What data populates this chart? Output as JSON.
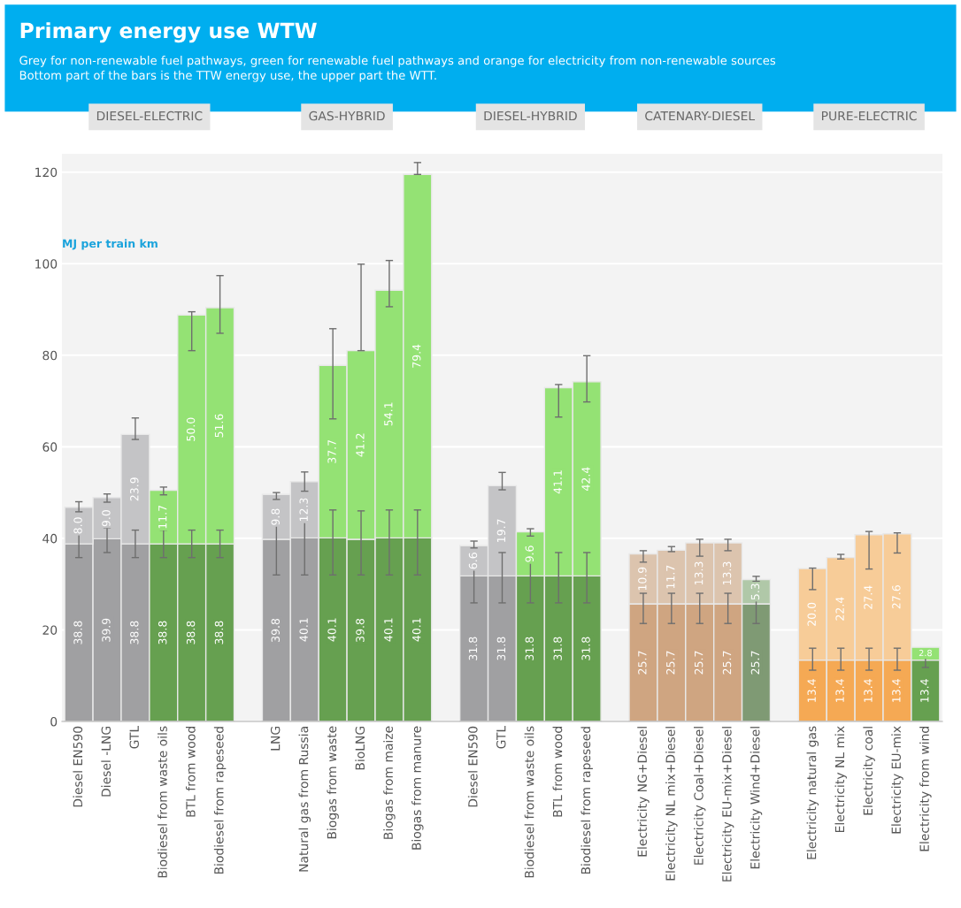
{
  "chart_data": {
    "type": "bar",
    "stacked": true,
    "title": "Primary energy use WTW",
    "subtitle": "Grey for non-renewable fuel pathways, green for renewable fuel pathways and orange for electricity from non-renewable sources\nBottom part of the bars is the TTW energy use, the upper part the WTT.",
    "ylabel": "MJ per train km",
    "annotations": [
      "DIESEL-ELECTRIC",
      "GAS-HYBRID",
      "DIESEL-HYBRID",
      "CATENARY-DIESEL",
      "PURE-ELECTRIC"
    ],
    "categories": [
      "Diesel EN590",
      "Diesel -LNG",
      "GTL",
      "Biodiesel from waste oils",
      "BTL from wood",
      "Biodiesel from rapeseed",
      null,
      "LNG",
      "Natural gas from Russia",
      "Biogas from waste",
      "BioLNG",
      "Biogas from maize",
      "Biogas from manure",
      null,
      "Diesel EN590",
      "GTL",
      "Biodiesel from waste oils",
      "BTL from wood",
      "Biodiesel from rapeseed",
      null,
      "Electricity NG+Diesel",
      "Electricity NL mix+Diesel",
      "Electricity Coal+Diesel",
      "Electricity EU-mix+Diesel",
      "Electricity Wind+Diesel",
      null,
      "Electricity natural gas",
      "Electricity NL mix",
      "Electricity coal",
      "Electricity EU-mix",
      "Electricity from wind"
    ],
    "series": [
      {
        "values": [
          38.8,
          39.9,
          38.8,
          38.8,
          38.8,
          38.8,
          null,
          39.8,
          40.1,
          40.1,
          39.8,
          40.1,
          40.1,
          null,
          31.8,
          31.8,
          31.8,
          31.8,
          31.8,
          null,
          25.7,
          25.7,
          25.7,
          25.7,
          25.7,
          null,
          13.4,
          13.4,
          13.4,
          13.4,
          13.4
        ],
        "colors": [
          "#a0a0a2",
          "#a0a0a2",
          "#a0a0a2",
          "#66a050",
          "#66a050",
          "#66a050",
          null,
          "#a0a0a2",
          "#a0a0a2",
          "#66a050",
          "#66a050",
          "#66a050",
          "#66a050",
          null,
          "#a0a0a2",
          "#a0a0a2",
          "#66a050",
          "#66a050",
          "#66a050",
          null,
          "#cfa581",
          "#cfa581",
          "#cfa581",
          "#cfa581",
          "#7f9a74",
          null,
          "#f5a954",
          "#f5a954",
          "#f5a954",
          "#f5a954",
          "#66a050"
        ],
        "errors": [
          [
            35.8,
            41.8
          ],
          [
            36.9,
            42.3
          ],
          [
            35.8,
            41.8
          ],
          [
            35.8,
            41.8
          ],
          [
            35.8,
            41.8
          ],
          [
            35.8,
            41.8
          ],
          null,
          [
            32,
            46
          ],
          [
            32,
            46.2
          ],
          [
            32,
            46.2
          ],
          [
            32,
            46
          ],
          [
            32,
            46.2
          ],
          [
            32,
            46.2
          ],
          null,
          [
            25.9,
            36.9
          ],
          [
            25.9,
            36.9
          ],
          [
            25.9,
            36.9
          ],
          [
            25.9,
            36.9
          ],
          [
            25.9,
            36.9
          ],
          null,
          [
            21.4,
            28
          ],
          [
            21.4,
            28
          ],
          [
            21.4,
            28
          ],
          [
            21.4,
            28
          ],
          [
            21.4,
            28
          ],
          null,
          [
            11.2,
            16
          ],
          [
            11.2,
            16
          ],
          [
            11.2,
            16
          ],
          [
            11.2,
            16
          ],
          [
            11.8,
            14.0
          ]
        ],
        "value_labels": [
          "38.8",
          "39.9",
          "38.8",
          "38.8",
          "38.8",
          "38.8",
          null,
          "39.8",
          "40.1",
          "40.1",
          "39.8",
          "40.1",
          "40.1",
          null,
          "31.8",
          "31.8",
          "31.8",
          "31.8",
          "31.8",
          null,
          "25.7",
          "25.7",
          "25.7",
          "25.7",
          "25.7",
          null,
          "13.4",
          "13.4",
          "13.4",
          "13.4",
          "13.4"
        ]
      },
      {
        "values": [
          8.0,
          9.0,
          23.9,
          11.7,
          50.0,
          51.6,
          null,
          9.8,
          12.3,
          37.7,
          41.2,
          54.1,
          79.4,
          null,
          6.6,
          19.7,
          9.6,
          41.1,
          42.4,
          null,
          10.9,
          11.7,
          13.3,
          13.3,
          5.3,
          null,
          20.0,
          22.4,
          27.4,
          27.6,
          2.8
        ],
        "colors": [
          "#c4c4c6",
          "#c4c4c6",
          "#c4c4c6",
          "#94e274",
          "#94e274",
          "#94e274",
          null,
          "#c4c4c6",
          "#c4c4c6",
          "#94e274",
          "#94e274",
          "#94e274",
          "#94e274",
          null,
          "#c4c4c6",
          "#c4c4c6",
          "#94e274",
          "#94e274",
          "#94e274",
          null,
          "#dcc4ae",
          "#dcc4ae",
          "#dcc4ae",
          "#dcc4ae",
          "#b0c8a8",
          null,
          "#f7cc98",
          "#f7cc98",
          "#f7cc98",
          "#f7cc98",
          "#94e274"
        ],
        "errors": [
          [
            45.8,
            48.0
          ],
          [
            47.9,
            49.7
          ],
          [
            61.6,
            66.3
          ],
          [
            49.5,
            51.2
          ],
          [
            81.0,
            89.5
          ],
          [
            84.8,
            97.4
          ],
          null,
          [
            48.5,
            50.0
          ],
          [
            50.3,
            54.5
          ],
          [
            66.1,
            85.8
          ],
          [
            81.0,
            99.9
          ],
          [
            90.6,
            100.7
          ],
          [
            119.5,
            122.1
          ],
          null,
          [
            37.9,
            39.4
          ],
          [
            50.6,
            54.4
          ],
          [
            40.5,
            42.1
          ],
          [
            66.5,
            73.6
          ],
          [
            69.8,
            79.9
          ],
          null,
          [
            34.8,
            37.3
          ],
          [
            37.1,
            38.2
          ],
          [
            36.1,
            39.8
          ],
          [
            37.3,
            39.8
          ],
          [
            30.6,
            31.7
          ],
          null,
          [
            28.8,
            33.5
          ],
          [
            35.5,
            36.5
          ],
          [
            33.3,
            41.5
          ],
          [
            36.8,
            41.2
          ],
          null
        ],
        "value_labels": [
          "8.0",
          "9.0",
          "23.9",
          "11.7",
          "50.0",
          "51.6",
          null,
          "9.8",
          "12.3",
          "37.7",
          "41.2",
          "54.1",
          "79.4",
          null,
          "6.6",
          "19.7",
          "9.6",
          "41.1",
          "42.4",
          null,
          "10.9",
          "11.7",
          "13.3",
          "13.3",
          "5.3",
          null,
          "20.0",
          "22.4",
          "27.4",
          "27.6",
          "2.8"
        ]
      }
    ],
    "ylim": [
      0,
      124
    ],
    "yticks": [
      0,
      20,
      40,
      60,
      80,
      100,
      120
    ],
    "grid": "y"
  }
}
